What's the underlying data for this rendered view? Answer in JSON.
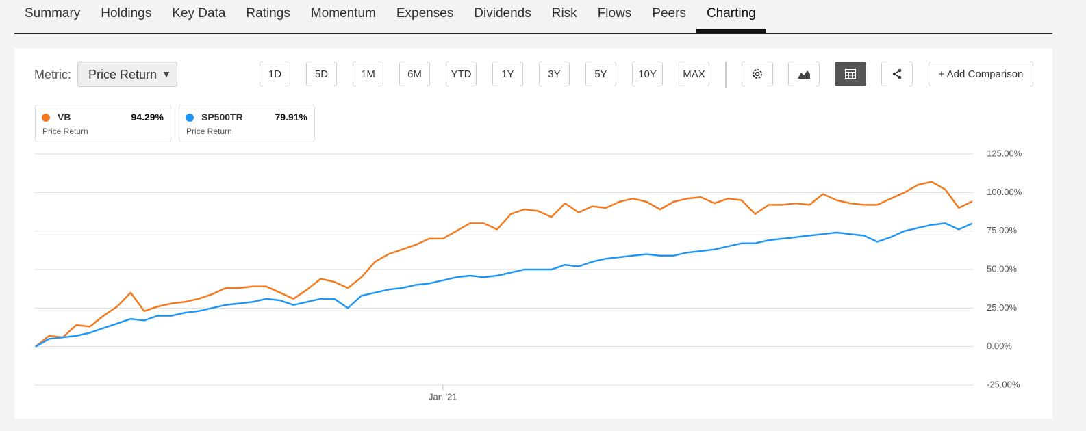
{
  "tabs": [
    {
      "label": "Summary"
    },
    {
      "label": "Holdings"
    },
    {
      "label": "Key Data"
    },
    {
      "label": "Ratings"
    },
    {
      "label": "Momentum"
    },
    {
      "label": "Expenses"
    },
    {
      "label": "Dividends"
    },
    {
      "label": "Risk"
    },
    {
      "label": "Flows"
    },
    {
      "label": "Peers"
    },
    {
      "label": "Charting",
      "selected": true
    }
  ],
  "toolbar": {
    "metric_label": "Metric:",
    "metric_value": "Price Return",
    "ranges": [
      "1D",
      "5D",
      "1M",
      "6M",
      "YTD",
      "1Y",
      "3Y",
      "5Y",
      "10Y",
      "MAX"
    ],
    "add_comparison": "+ Add Comparison"
  },
  "chart_data": {
    "type": "line",
    "categories": [
      null,
      null,
      null,
      null,
      null,
      null,
      null,
      null,
      null,
      null,
      null,
      null,
      null,
      null,
      null,
      null,
      null,
      null,
      null,
      null,
      null,
      null,
      null,
      null,
      null,
      null,
      null,
      null,
      null,
      null,
      "Jan '21",
      null,
      null,
      null,
      null,
      null,
      null,
      null,
      null,
      null,
      null,
      null,
      null,
      null,
      null,
      null,
      null,
      null,
      null,
      null,
      null,
      null,
      null,
      null,
      null,
      null,
      null,
      null,
      null,
      null,
      null,
      null,
      null,
      null,
      null,
      null,
      null,
      null,
      null,
      null
    ],
    "series": [
      {
        "name": "VB",
        "summary": "94.29%",
        "metric": "Price Return",
        "color": "#f47a1f",
        "values": [
          0,
          7,
          6,
          14,
          13,
          20,
          26,
          35,
          23,
          26,
          28,
          29,
          31,
          34,
          38,
          38,
          39,
          39,
          35,
          31,
          37,
          44,
          42,
          38,
          45,
          55,
          60,
          63,
          66,
          70,
          70,
          75,
          80,
          80,
          76,
          86,
          89,
          88,
          84,
          93,
          87,
          91,
          90,
          94,
          96,
          94,
          89,
          94,
          96,
          97,
          93,
          96,
          95,
          86,
          92,
          92,
          93,
          92,
          99,
          95,
          93,
          92,
          92,
          96,
          100,
          105,
          107,
          102,
          90,
          94.29
        ]
      },
      {
        "name": "SP500TR",
        "summary": "79.91%",
        "metric": "Price Return",
        "color": "#2196f3",
        "values": [
          0,
          5,
          6,
          7,
          9,
          12,
          15,
          18,
          17,
          20,
          20,
          22,
          23,
          25,
          27,
          28,
          29,
          31,
          30,
          27,
          29,
          31,
          31,
          25,
          33,
          35,
          37,
          38,
          40,
          41,
          43,
          45,
          46,
          45,
          46,
          48,
          50,
          50,
          50,
          53,
          52,
          55,
          57,
          58,
          59,
          60,
          59,
          59,
          61,
          62,
          63,
          65,
          67,
          67,
          69,
          70,
          71,
          72,
          73,
          74,
          73,
          72,
          68,
          71,
          75,
          77,
          79,
          80,
          76,
          79.91
        ]
      }
    ],
    "ylim": [
      -25,
      125
    ],
    "yticks": [
      {
        "value": -25,
        "label": "-25.00%"
      },
      {
        "value": 0,
        "label": "0.00%"
      },
      {
        "value": 25,
        "label": "25.00%"
      },
      {
        "value": 50,
        "label": "50.00%"
      },
      {
        "value": 75,
        "label": "75.00%"
      },
      {
        "value": 100,
        "label": "100.00%"
      },
      {
        "value": 125,
        "label": "125.00%"
      }
    ],
    "grid": true
  }
}
